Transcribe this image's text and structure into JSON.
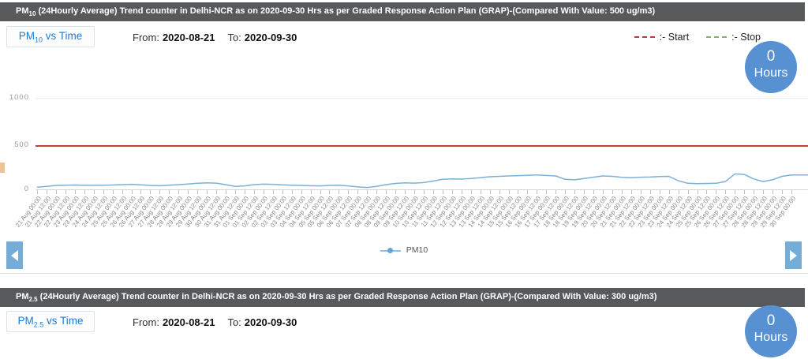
{
  "panels": [
    {
      "title": {
        "prefix": "PM",
        "sub": "10",
        "rest": " (24Hourly Average) Trend counter in Delhi-NCR as on 2020-09-30 Hrs as per Graded Response Action Plan (GRAP)-(Compared With Value: 500 ug/m3)"
      },
      "button": {
        "prefix": "PM",
        "sub": "10",
        "rest": " vs Time"
      },
      "from_label": "From:",
      "from_value": "2020-08-21",
      "to_label": "To:",
      "to_value": "2020-09-30",
      "hours_badge": {
        "value": "0",
        "unit": "Hours"
      }
    },
    {
      "title": {
        "prefix": "PM",
        "sub": "2.5",
        "rest": " (24Hourly Average) Trend counter in Delhi-NCR as on 2020-09-30 Hrs as per Graded Response Action Plan (GRAP)-(Compared With Value: 300 ug/m3)"
      },
      "button": {
        "prefix": "PM",
        "sub": "2.5",
        "rest": " vs Time"
      },
      "from_label": "From:",
      "from_value": "2020-08-21",
      "to_label": "To:",
      "to_value": "2020-09-30",
      "hours_badge": {
        "value": "0",
        "unit": "Hours"
      }
    }
  ],
  "legend": {
    "start": {
      "label": ":- Start",
      "color": "#b94040"
    },
    "stop": {
      "label": ":- Stop",
      "color": "#82b366"
    }
  },
  "colors": {
    "titlebar_bg": "#58595b",
    "accent_blue": "#1c7cd6",
    "badge_blue": "#5791d1",
    "nav_blue": "#74add8",
    "threshold_red": "#c0403e",
    "series_blue": "#7ab1d8"
  },
  "chart_data": {
    "type": "line",
    "title": "PM10 (24Hourly Average) Trend counter in Delhi-NCR",
    "xlabel": "",
    "ylabel": "",
    "ylim": [
      0,
      1160
    ],
    "yticks": [
      0,
      500,
      1000
    ],
    "yticks_display": [
      "1000",
      "500",
      "0"
    ],
    "grid": "horizontal",
    "legend_position": "bottom-center",
    "threshold": {
      "value": 500,
      "color": "#c0403e",
      "name": "Start"
    },
    "series": [
      {
        "name": "PM10",
        "color": "#7ab1d8",
        "values": [
          25,
          35,
          45,
          48,
          50,
          48,
          46,
          48,
          50,
          55,
          58,
          52,
          45,
          42,
          48,
          55,
          62,
          70,
          75,
          72,
          55,
          35,
          40,
          55,
          60,
          58,
          52,
          48,
          45,
          42,
          40,
          45,
          48,
          40,
          28,
          22,
          35,
          55,
          68,
          75,
          72,
          78,
          95,
          115,
          120,
          118,
          125,
          135,
          145,
          150,
          155,
          158,
          162,
          165,
          160,
          155,
          115,
          110,
          125,
          140,
          155,
          150,
          138,
          135,
          140,
          142,
          148,
          150,
          100,
          70,
          65,
          68,
          70,
          90,
          178,
          172,
          120,
          90,
          110,
          150,
          165
        ]
      }
    ],
    "x_labels": [
      "21 Aug 00:00",
      "21 Aug 12:00",
      "22 Aug 00:00",
      "22 Aug 12:00",
      "23 Aug 00:00",
      "23 Aug 12:00",
      "24 Aug 00:00",
      "24 Aug 12:00",
      "25 Aug 00:00",
      "25 Aug 12:00",
      "26 Aug 00:00",
      "26 Aug 12:00",
      "27 Aug 00:00",
      "27 Aug 12:00",
      "28 Aug 00:00",
      "28 Aug 12:00",
      "29 Aug 00:00",
      "29 Aug 12:00",
      "30 Aug 00:00",
      "30 Aug 12:00",
      "31 Aug 00:00",
      "31 Aug 12:00",
      "01 Sep 00:00",
      "01 Sep 12:00",
      "02 Sep 00:00",
      "02 Sep 12:00",
      "03 Sep 00:00",
      "03 Sep 12:00",
      "04 Sep 00:00",
      "04 Sep 12:00",
      "05 Sep 00:00",
      "05 Sep 12:00",
      "06 Sep 00:00",
      "06 Sep 12:00",
      "07 Sep 00:00",
      "07 Sep 12:00",
      "08 Sep 00:00",
      "08 Sep 12:00",
      "09 Sep 00:00",
      "09 Sep 12:00",
      "10 Sep 00:00",
      "10 Sep 12:00",
      "11 Sep 00:00",
      "11 Sep 12:00",
      "12 Sep 00:00",
      "12 Sep 12:00",
      "13 Sep 00:00",
      "13 Sep 12:00",
      "14 Sep 00:00",
      "14 Sep 12:00",
      "15 Sep 00:00",
      "15 Sep 12:00",
      "16 Sep 00:00",
      "16 Sep 12:00",
      "17 Sep 00:00",
      "17 Sep 12:00",
      "18 Sep 00:00",
      "18 Sep 12:00",
      "19 Sep 00:00",
      "19 Sep 12:00",
      "20 Sep 00:00",
      "20 Sep 12:00",
      "21 Sep 00:00",
      "21 Sep 12:00",
      "22 Sep 00:00",
      "22 Sep 12:00",
      "23 Sep 00:00",
      "23 Sep 12:00",
      "24 Sep 00:00",
      "24 Sep 12:00",
      "25 Sep 00:00",
      "25 Sep 12:00",
      "26 Sep 00:00",
      "26 Sep 12:00",
      "27 Sep 00:00",
      "27 Sep 12:00",
      "28 Sep 00:00",
      "28 Sep 12:00",
      "29 Sep 00:00",
      "29 Sep 12:00",
      "30 Sep 00:00"
    ]
  }
}
